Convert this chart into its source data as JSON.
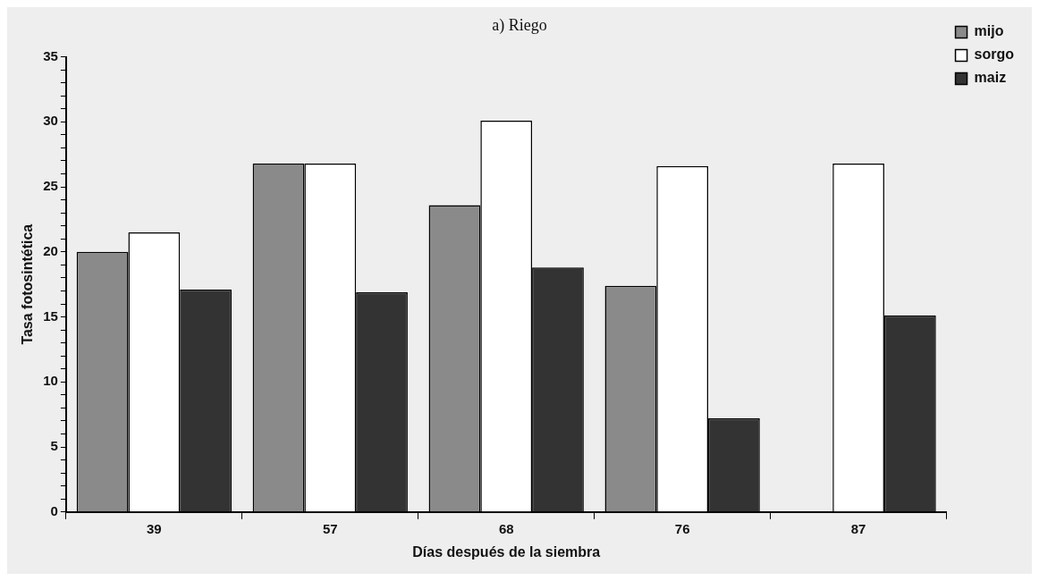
{
  "chart_data": {
    "type": "bar",
    "title": "a) Riego",
    "xlabel": "Días después de la siembra",
    "ylabel": "Tasa fotosintética",
    "categories": [
      "39",
      "57",
      "68",
      "76",
      "87"
    ],
    "series": [
      {
        "name": "mijo",
        "color": "#8a8a8a",
        "values": [
          20,
          26.8,
          23.6,
          17.4,
          null
        ]
      },
      {
        "name": "sorgo",
        "color": "#ffffff",
        "values": [
          21.5,
          26.8,
          30.1,
          26.6,
          26.8
        ]
      },
      {
        "name": "maiz",
        "color": "#333333",
        "values": [
          17.1,
          16.9,
          18.8,
          7.2,
          15.1
        ]
      }
    ],
    "ylim": [
      0,
      35
    ],
    "yticks": [
      0,
      {
        "value": 1,
        "label": null
      },
      {
        "value": 2,
        "label": null
      },
      {
        "value": 3,
        "label": null
      },
      {
        "value": 4,
        "label": null
      },
      5,
      {
        "value": 6,
        "label": null
      },
      {
        "value": 7,
        "label": null
      },
      {
        "value": 8,
        "label": null
      },
      {
        "value": 9,
        "label": null
      },
      10,
      {
        "value": 11,
        "label": null
      },
      {
        "value": 12,
        "label": null
      },
      {
        "value": 13,
        "label": null
      },
      {
        "value": 14,
        "label": null
      },
      15,
      {
        "value": 16,
        "label": null
      },
      {
        "value": 17,
        "label": null
      },
      {
        "value": 18,
        "label": null
      },
      {
        "value": 19,
        "label": null
      },
      20,
      {
        "value": 21,
        "label": null
      },
      {
        "value": 22,
        "label": null
      },
      {
        "value": 23,
        "label": null
      },
      {
        "value": 24,
        "label": null
      },
      25,
      {
        "value": 26,
        "label": null
      },
      {
        "value": 27,
        "label": null
      },
      {
        "value": 28,
        "label": null
      },
      {
        "value": 29,
        "label": null
      },
      30,
      {
        "value": 31,
        "label": null
      },
      {
        "value": 32,
        "label": null
      },
      {
        "value": 33,
        "label": null
      },
      {
        "value": 34,
        "label": null
      },
      35
    ],
    "grid": false,
    "legend": "top right"
  }
}
